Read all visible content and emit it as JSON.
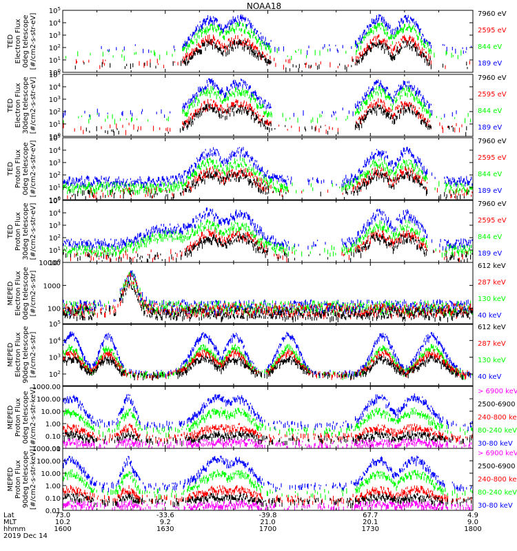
{
  "figure": {
    "title": "NOAA18",
    "date_label": "2019 Dec 14"
  },
  "colors": {
    "black": "#000000",
    "red": "#ff0000",
    "green": "#00ff00",
    "blue": "#0000ff",
    "magenta": "#ff00ff"
  },
  "footer": {
    "row_labels": [
      "Lat",
      "MLT",
      "hhmm"
    ],
    "columns": [
      {
        "lat": "73.0",
        "mlt": "10.2",
        "hhmm": "1600"
      },
      {
        "lat": "-33.6",
        "mlt": "9.2",
        "hhmm": "1630"
      },
      {
        "lat": "-39.8",
        "mlt": "21.0",
        "hhmm": "1700"
      },
      {
        "lat": "67.7",
        "mlt": "20.1",
        "hhmm": "1730"
      },
      {
        "lat": "4.9",
        "mlt": "9.0",
        "hhmm": "1800"
      }
    ]
  },
  "chart_data": [
    {
      "type": "scatter",
      "ylabel": [
        "TED",
        "Electron Flux",
        "0deg telescope",
        "[#/cm2-s-str-eV]"
      ],
      "yscale": "log",
      "ylim": [
        1,
        100000
      ],
      "yticks": [
        {
          "v": 1,
          "t": "10",
          "e": "0"
        },
        {
          "v": 10,
          "t": "10",
          "e": "1"
        },
        {
          "v": 100,
          "t": "10",
          "e": "2"
        },
        {
          "v": 1000,
          "t": "10",
          "e": "3"
        },
        {
          "v": 10000,
          "t": "10",
          "e": "4"
        },
        {
          "v": 100000,
          "t": "10",
          "e": "5"
        }
      ],
      "xlim": [
        "16:00",
        "18:00"
      ],
      "legend": [
        {
          "label": "7960 eV",
          "color": "#000000"
        },
        {
          "label": "2595 eV",
          "color": "#ff0000"
        },
        {
          "label": "844 eV",
          "color": "#00ff00"
        },
        {
          "label": "189 eV",
          "color": "#0000ff"
        }
      ]
    },
    {
      "type": "scatter",
      "ylabel": [
        "TED",
        "Electron Flux",
        "30deg telescope",
        "[#/cm2-s-str-eV]"
      ],
      "yscale": "log",
      "ylim": [
        1,
        100000
      ],
      "yticks": [
        {
          "v": 1,
          "t": "10",
          "e": "0"
        },
        {
          "v": 10,
          "t": "10",
          "e": "1"
        },
        {
          "v": 100,
          "t": "10",
          "e": "2"
        },
        {
          "v": 1000,
          "t": "10",
          "e": "3"
        },
        {
          "v": 10000,
          "t": "10",
          "e": "4"
        },
        {
          "v": 100000,
          "t": "10",
          "e": "5"
        }
      ],
      "xlim": [
        "16:00",
        "18:00"
      ],
      "legend": [
        {
          "label": "7960 eV",
          "color": "#000000"
        },
        {
          "label": "2595 eV",
          "color": "#ff0000"
        },
        {
          "label": "844 eV",
          "color": "#00ff00"
        },
        {
          "label": "189 eV",
          "color": "#0000ff"
        }
      ]
    },
    {
      "type": "scatter",
      "ylabel": [
        "TED",
        "Proton Flux",
        "0deg telescope",
        "[#/cm2-s-str-eV]"
      ],
      "yscale": "log",
      "ylim": [
        1,
        100000
      ],
      "yticks": [
        {
          "v": 1,
          "t": "10",
          "e": "0"
        },
        {
          "v": 10,
          "t": "10",
          "e": "1"
        },
        {
          "v": 100,
          "t": "10",
          "e": "2"
        },
        {
          "v": 1000,
          "t": "10",
          "e": "3"
        },
        {
          "v": 10000,
          "t": "10",
          "e": "4"
        },
        {
          "v": 100000,
          "t": "10",
          "e": "5"
        }
      ],
      "xlim": [
        "16:00",
        "18:00"
      ],
      "legend": [
        {
          "label": "7960 eV",
          "color": "#000000"
        },
        {
          "label": "2595 eV",
          "color": "#ff0000"
        },
        {
          "label": "844 eV",
          "color": "#00ff00"
        },
        {
          "label": "189 eV",
          "color": "#0000ff"
        }
      ]
    },
    {
      "type": "scatter",
      "ylabel": [
        "TED",
        "Proton Flux",
        "30deg telescope",
        "[#/cm2-s-str-eV]"
      ],
      "yscale": "log",
      "ylim": [
        1,
        100000
      ],
      "yticks": [
        {
          "v": 1,
          "t": "10",
          "e": "0"
        },
        {
          "v": 10,
          "t": "10",
          "e": "1"
        },
        {
          "v": 100,
          "t": "10",
          "e": "2"
        },
        {
          "v": 1000,
          "t": "10",
          "e": "3"
        },
        {
          "v": 10000,
          "t": "10",
          "e": "4"
        },
        {
          "v": 100000,
          "t": "10",
          "e": "5"
        }
      ],
      "xlim": [
        "16:00",
        "18:00"
      ],
      "legend": [
        {
          "label": "7960 eV",
          "color": "#000000"
        },
        {
          "label": "2595 eV",
          "color": "#ff0000"
        },
        {
          "label": "844 eV",
          "color": "#00ff00"
        },
        {
          "label": "189 eV",
          "color": "#0000ff"
        }
      ]
    },
    {
      "type": "scatter",
      "ylabel": [
        "MEPED",
        "Electron Flux",
        "0deg telescope",
        "[#/cm2-s-str]"
      ],
      "yscale": "log",
      "ylim": [
        20,
        10000
      ],
      "yticks": [
        {
          "v": 100,
          "t": "100"
        },
        {
          "v": 1000,
          "t": "1000"
        },
        {
          "v": 10000,
          "t": "10000"
        }
      ],
      "xlim": [
        "16:00",
        "18:00"
      ],
      "legend": [
        {
          "label": "612 keV",
          "color": "#000000"
        },
        {
          "label": "287 keV",
          "color": "#ff0000"
        },
        {
          "label": "130 keV",
          "color": "#00ff00"
        },
        {
          "label": "40 keV",
          "color": "#0000ff"
        }
      ]
    },
    {
      "type": "scatter",
      "ylabel": [
        "MEPED",
        "Electron Flux",
        "90deg telescope",
        "[#/cm2-s-str]"
      ],
      "yscale": "log",
      "ylim": [
        20,
        100000
      ],
      "yticks": [
        {
          "v": 100,
          "t": "10",
          "e": "2"
        },
        {
          "v": 1000,
          "t": "10",
          "e": "3"
        },
        {
          "v": 10000,
          "t": "10",
          "e": "4"
        },
        {
          "v": 100000,
          "t": "10",
          "e": "5"
        }
      ],
      "xlim": [
        "16:00",
        "18:00"
      ],
      "legend": [
        {
          "label": "612 keV",
          "color": "#000000"
        },
        {
          "label": "287 keV",
          "color": "#ff0000"
        },
        {
          "label": "130 keV",
          "color": "#00ff00"
        },
        {
          "label": "40 keV",
          "color": "#0000ff"
        }
      ]
    },
    {
      "type": "scatter",
      "ylabel": [
        "MEPED",
        "Proton Flux",
        "0deg telescope",
        "[#/cm2-s-str-keV]"
      ],
      "yscale": "log",
      "ylim": [
        0.01,
        1000
      ],
      "yticks": [
        {
          "v": 0.01,
          "t": "0.01"
        },
        {
          "v": 0.1,
          "t": "0.10"
        },
        {
          "v": 1,
          "t": "1.00"
        },
        {
          "v": 10,
          "t": "10.00"
        },
        {
          "v": 100,
          "t": "100.00"
        },
        {
          "v": 1000,
          "t": "1000.00"
        }
      ],
      "xlim": [
        "16:00",
        "18:00"
      ],
      "legend": [
        {
          "label": "> 6900 keV",
          "color": "#ff00ff"
        },
        {
          "label": "2500-6900",
          "color": "#000000"
        },
        {
          "label": "240-800 ke",
          "color": "#ff0000"
        },
        {
          "label": "80-240 keV",
          "color": "#00ff00"
        },
        {
          "label": "30-80 keV",
          "color": "#0000ff"
        }
      ]
    },
    {
      "type": "scatter",
      "ylabel": [
        "MEPED",
        "Proton Flux",
        "90deg telescope",
        "[#/cm2-s-str-keV]"
      ],
      "yscale": "log",
      "ylim": [
        0.01,
        1000
      ],
      "yticks": [
        {
          "v": 0.01,
          "t": "0.01"
        },
        {
          "v": 0.1,
          "t": "0.10"
        },
        {
          "v": 1,
          "t": "1.00"
        },
        {
          "v": 10,
          "t": "10.00"
        },
        {
          "v": 100,
          "t": "100.00"
        },
        {
          "v": 1000,
          "t": "1000.00"
        }
      ],
      "xlim": [
        "16:00",
        "18:00"
      ],
      "legend": [
        {
          "label": "> 6900 keV",
          "color": "#ff00ff"
        },
        {
          "label": "2500-6900",
          "color": "#000000"
        },
        {
          "label": "240-800 ke",
          "color": "#ff0000"
        },
        {
          "label": "80-240 keV",
          "color": "#00ff00"
        },
        {
          "label": "30-80 keV",
          "color": "#0000ff"
        }
      ]
    }
  ]
}
